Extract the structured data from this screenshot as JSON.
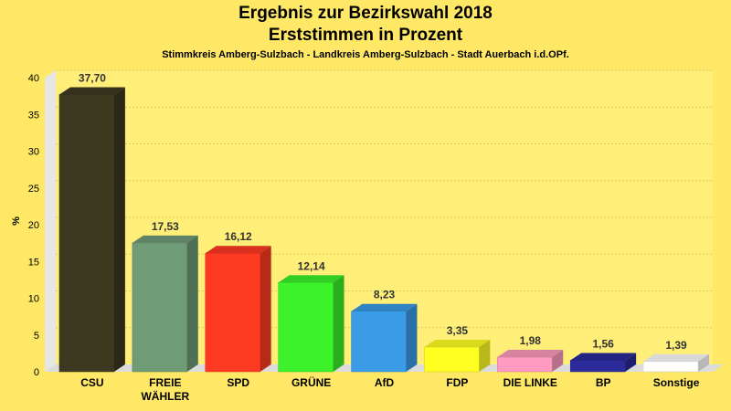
{
  "header": {
    "title_line1": "Ergebnis zur Bezirkswahl 2018",
    "title_line2": "Erststimmen in Prozent",
    "subtitle": "Stimmkreis Amberg-Sulzbach - Landkreis Amberg-Sulzbach - Stadt Auerbach i.d.OPf."
  },
  "chart_data": {
    "type": "bar",
    "title": "Ergebnis zur Bezirkswahl 2018 Erststimmen in Prozent",
    "subtitle": "Stimmkreis Amberg-Sulzbach - Landkreis Amberg-Sulzbach - Stadt Auerbach i.d.OPf.",
    "ylabel": "%",
    "xlabel": "",
    "ylim": [
      0,
      40
    ],
    "yticks": [
      0,
      5,
      10,
      15,
      20,
      25,
      30,
      35,
      40
    ],
    "grid": true,
    "categories": [
      "CSU",
      "FREIE WÄHLER",
      "SPD",
      "GRÜNE",
      "AfD",
      "FDP",
      "DIE LINKE",
      "BP",
      "Sonstige"
    ],
    "category_lines": [
      [
        "CSU"
      ],
      [
        "FREIE",
        "WÄHLER"
      ],
      [
        "SPD"
      ],
      [
        "GRÜNE"
      ],
      [
        "AfD"
      ],
      [
        "FDP"
      ],
      [
        "DIE LINKE"
      ],
      [
        "BP"
      ],
      [
        "Sonstige"
      ]
    ],
    "values": [
      37.7,
      17.53,
      16.12,
      12.14,
      8.23,
      3.35,
      1.98,
      1.56,
      1.39
    ],
    "value_labels": [
      "37,70",
      "17,53",
      "16,12",
      "12,14",
      "8,23",
      "3,35",
      "1,98",
      "1,56",
      "1,39"
    ],
    "colors": [
      "#3d3820",
      "#6f9b77",
      "#ff3a22",
      "#3cf22a",
      "#3a9be6",
      "#ffff22",
      "#ff9ac0",
      "#2a2a9a",
      "#ffffff"
    ]
  }
}
